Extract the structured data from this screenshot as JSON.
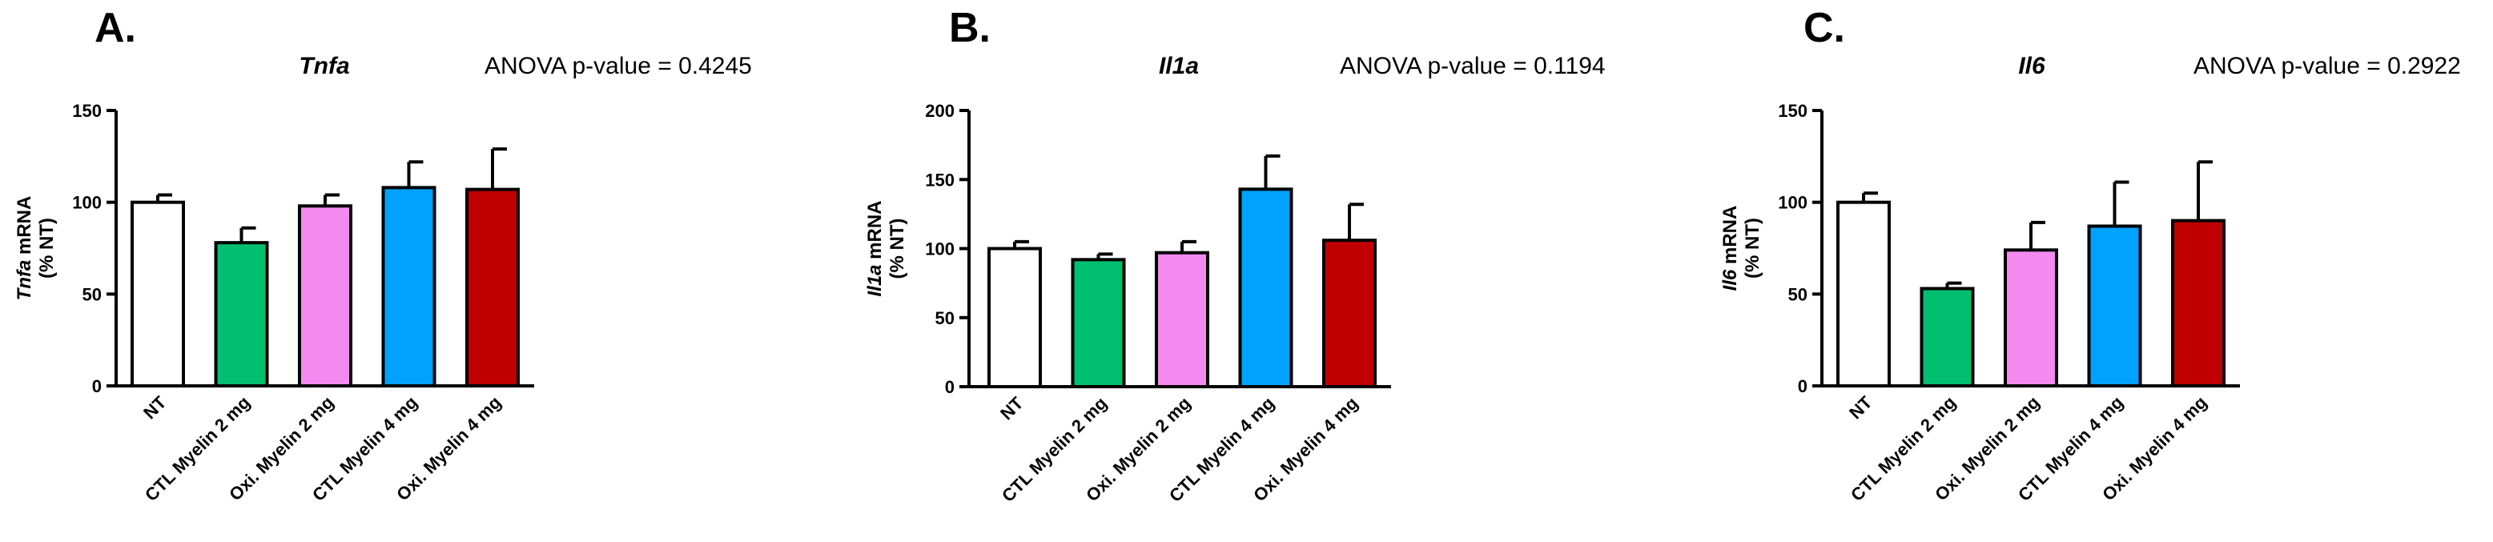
{
  "chart_data": [
    {
      "type": "bar",
      "panel_label": "A.",
      "title": "Tnfa",
      "annotation": "ANOVA p-value = 0.4245",
      "ylabel_gene": "Tnfa",
      "ylabel_suffix": " mRNA",
      "ylabel_line2": "(% NT)",
      "ylim": [
        0,
        150
      ],
      "yticks": [
        0,
        50,
        100,
        150
      ],
      "categories": [
        "NT",
        "CTL Myelin 2 mg",
        "Oxi. Myelin 2 mg",
        "CTL Myelin 4 mg",
        "Oxi. Myelin 4 mg"
      ],
      "values": [
        100,
        78,
        98,
        108,
        107
      ],
      "errors": [
        4,
        8,
        6,
        14,
        22
      ],
      "colors": [
        "#ffffff",
        "#00bf6f",
        "#f48af0",
        "#00a2ff",
        "#c00000"
      ]
    },
    {
      "type": "bar",
      "panel_label": "B.",
      "title": "Il1a",
      "annotation": "ANOVA p-value = 0.1194",
      "ylabel_gene": "Il1a",
      "ylabel_suffix": " mRNA",
      "ylabel_line2": "(% NT)",
      "ylim": [
        0,
        200
      ],
      "yticks": [
        0,
        50,
        100,
        150,
        200
      ],
      "categories": [
        "NT",
        "CTL Myelin 2 mg",
        "Oxi. Myelin 2 mg",
        "CTL Myelin 4 mg",
        "Oxi. Myelin 4 mg"
      ],
      "values": [
        100,
        92,
        97,
        143,
        106
      ],
      "errors": [
        5,
        4,
        8,
        24,
        26
      ],
      "colors": [
        "#ffffff",
        "#00bf6f",
        "#f48af0",
        "#00a2ff",
        "#c00000"
      ]
    },
    {
      "type": "bar",
      "panel_label": "C.",
      "title": "Il6",
      "annotation": "ANOVA p-value = 0.2922",
      "ylabel_gene": "Il6",
      "ylabel_suffix": " mRNA",
      "ylabel_line2": "(% NT)",
      "ylim": [
        0,
        150
      ],
      "yticks": [
        0,
        50,
        100,
        150
      ],
      "categories": [
        "NT",
        "CTL Myelin 2 mg",
        "Oxi. Myelin 2 mg",
        "CTL Myelin 4 mg",
        "Oxi. Myelin 4 mg"
      ],
      "values": [
        100,
        53,
        74,
        87,
        90
      ],
      "errors": [
        5,
        3,
        15,
        24,
        32
      ],
      "colors": [
        "#ffffff",
        "#00bf6f",
        "#f48af0",
        "#00a2ff",
        "#c00000"
      ]
    }
  ]
}
